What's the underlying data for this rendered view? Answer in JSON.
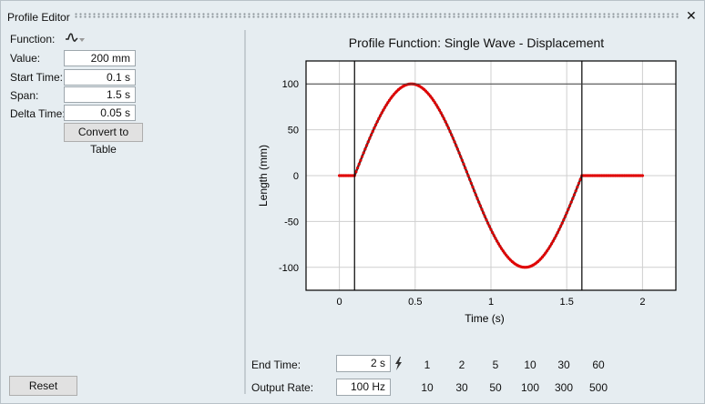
{
  "window": {
    "title": "Profile Editor",
    "close": "✕"
  },
  "left": {
    "function_label": "Function:",
    "function_icon": "single-wave-icon",
    "value_label": "Value:",
    "value": "200 mm",
    "start_label": "Start Time:",
    "start": "0.1 s",
    "span_label": "Span:",
    "span": "1.5 s",
    "delta_label": "Delta Time:",
    "delta": "0.05 s",
    "convert_label": "Convert to Table",
    "reset_label": "Reset"
  },
  "bottom": {
    "end_label": "End Time:",
    "end": "2 s",
    "rate_label": "Output Rate:",
    "rate": "100 Hz",
    "end_presets": [
      "1",
      "2",
      "5",
      "10",
      "30",
      "60"
    ],
    "rate_presets": [
      "10",
      "30",
      "50",
      "100",
      "300",
      "500"
    ]
  },
  "chart_data": {
    "type": "line",
    "title": "Profile Function: Single Wave - Displacement",
    "xlabel": "Time (s)",
    "ylabel": "Length (mm)",
    "xlim": [
      -0.22,
      2.22
    ],
    "ylim": [
      -125,
      125
    ],
    "xticks": [
      "0",
      "0.5",
      "1",
      "1.5",
      "2"
    ],
    "xtick_values": [
      0,
      0.5,
      1,
      1.5,
      2
    ],
    "yticks": [
      "100",
      "50",
      "0",
      "-50",
      "-100"
    ],
    "ytick_values": [
      100,
      50,
      0,
      -50,
      -100
    ],
    "grid": true,
    "wave": {
      "amplitude": 100,
      "start": 0.1,
      "span": 1.5,
      "end": 2,
      "rate_hz": 100
    },
    "markers": {
      "vertical": [
        0.1,
        1.6
      ],
      "horizontal": [
        100
      ]
    },
    "line_color": "#333333",
    "marker_color": "#e00000"
  }
}
